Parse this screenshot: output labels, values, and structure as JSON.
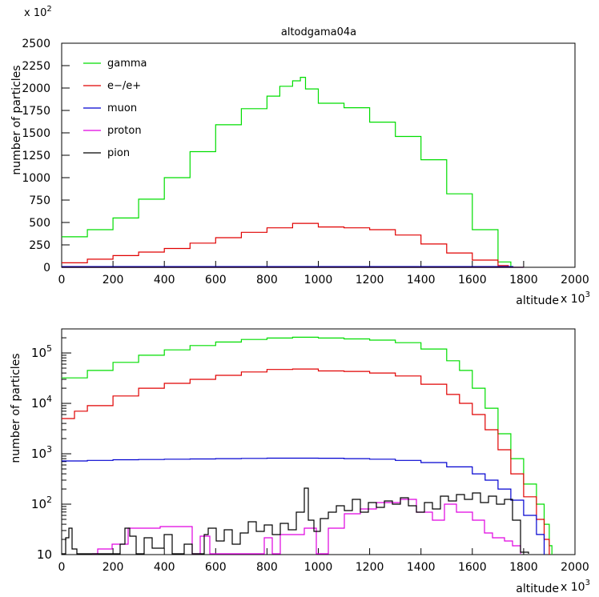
{
  "colors": {
    "gamma": "#00dd00",
    "electron": "#e00000",
    "muon": "#0000d0",
    "proton": "#e000e0",
    "pion": "#000000"
  },
  "chart_data": [
    {
      "type": "line",
      "title": "altodgama04a",
      "xlabel": "altitude",
      "ylabel": "number of particles",
      "x_multiplier": "x 10",
      "x_multiplier_exp": "3",
      "y_multiplier": "x 10",
      "y_multiplier_exp": "2",
      "xlim": [
        0,
        2000
      ],
      "ylim": [
        0,
        2500
      ],
      "yscale": "linear",
      "xticks": [
        "0",
        "200",
        "400",
        "600",
        "800",
        "1000",
        "1200",
        "1400",
        "1600",
        "1800",
        "2000"
      ],
      "yticks": [
        "0",
        "250",
        "500",
        "750",
        "1000",
        "1250",
        "1500",
        "1750",
        "2000",
        "2250",
        "2500"
      ],
      "legend_position": "top-left",
      "legend": [
        "gamma",
        "e−/e+",
        "muon",
        "proton",
        "pion"
      ],
      "grid": false,
      "series": [
        {
          "name": "gamma",
          "color": "#00dd00",
          "x": [
            0,
            100,
            200,
            300,
            400,
            500,
            600,
            700,
            800,
            850,
            900,
            930,
            950,
            1000,
            1100,
            1200,
            1300,
            1400,
            1500,
            1600,
            1700,
            1750
          ],
          "y": [
            340,
            420,
            550,
            760,
            1000,
            1290,
            1590,
            1770,
            1910,
            2020,
            2080,
            2120,
            1990,
            1830,
            1780,
            1620,
            1460,
            1200,
            820,
            420,
            60,
            0
          ]
        },
        {
          "name": "e−/e+",
          "color": "#e00000",
          "x": [
            0,
            100,
            200,
            300,
            400,
            500,
            600,
            700,
            800,
            900,
            1000,
            1100,
            1200,
            1300,
            1400,
            1500,
            1600,
            1700,
            1740
          ],
          "y": [
            50,
            90,
            130,
            170,
            210,
            270,
            330,
            390,
            440,
            490,
            450,
            440,
            420,
            360,
            260,
            160,
            80,
            20,
            0
          ]
        },
        {
          "name": "muon",
          "color": "#0000d0",
          "x": [
            0,
            1760
          ],
          "y": [
            8,
            8
          ]
        },
        {
          "name": "proton",
          "color": "#e000e0",
          "x": [
            0,
            1800
          ],
          "y": [
            0,
            0
          ]
        },
        {
          "name": "pion",
          "color": "#000000",
          "x": [
            0,
            1800
          ],
          "y": [
            0,
            0
          ]
        }
      ]
    },
    {
      "type": "line",
      "title": "",
      "xlabel": "altitude",
      "ylabel": "number of particles",
      "x_multiplier": "x 10",
      "x_multiplier_exp": "3",
      "xlim": [
        0,
        2000
      ],
      "ylim": [
        10,
        300000
      ],
      "yscale": "log",
      "xticks": [
        "0",
        "200",
        "400",
        "600",
        "800",
        "1000",
        "1200",
        "1400",
        "1600",
        "1800",
        "2000"
      ],
      "yticks": [
        {
          "value": 10,
          "base": "10",
          "exp": ""
        },
        {
          "value": 100,
          "base": "10",
          "exp": "2"
        },
        {
          "value": 1000,
          "base": "10",
          "exp": "3"
        },
        {
          "value": 10000,
          "base": "10",
          "exp": "4"
        },
        {
          "value": 100000,
          "base": "10",
          "exp": "5"
        }
      ],
      "grid": false,
      "series": [
        {
          "name": "gamma",
          "color": "#00dd00",
          "x": [
            0,
            100,
            200,
            300,
            400,
            500,
            600,
            700,
            800,
            900,
            1000,
            1100,
            1200,
            1300,
            1400,
            1500,
            1550,
            1600,
            1650,
            1700,
            1750,
            1800,
            1850,
            1880,
            1900,
            1910
          ],
          "y": [
            32000,
            45000,
            65000,
            90000,
            115000,
            140000,
            165000,
            185000,
            198000,
            205000,
            198000,
            190000,
            180000,
            160000,
            120000,
            70000,
            45000,
            20000,
            8000,
            2500,
            800,
            250,
            100,
            40,
            15,
            10
          ]
        },
        {
          "name": "e−/e+",
          "color": "#e00000",
          "x": [
            0,
            50,
            100,
            200,
            300,
            400,
            500,
            600,
            700,
            800,
            900,
            1000,
            1100,
            1200,
            1300,
            1400,
            1500,
            1550,
            1600,
            1650,
            1700,
            1750,
            1800,
            1850,
            1880,
            1900
          ],
          "y": [
            5000,
            7000,
            9000,
            14000,
            20000,
            25000,
            30000,
            36000,
            42000,
            47000,
            48000,
            44000,
            43000,
            40000,
            35000,
            24000,
            15000,
            10000,
            6000,
            3000,
            1200,
            400,
            140,
            50,
            20,
            10
          ]
        },
        {
          "name": "muon",
          "color": "#0000d0",
          "x": [
            0,
            100,
            200,
            300,
            400,
            500,
            600,
            700,
            800,
            900,
            1000,
            1100,
            1200,
            1300,
            1400,
            1500,
            1600,
            1650,
            1700,
            1750,
            1800,
            1850,
            1880
          ],
          "y": [
            720,
            740,
            760,
            770,
            780,
            790,
            800,
            810,
            820,
            820,
            815,
            800,
            780,
            740,
            670,
            550,
            400,
            300,
            200,
            120,
            60,
            25,
            10
          ]
        }
      ]
    }
  ]
}
